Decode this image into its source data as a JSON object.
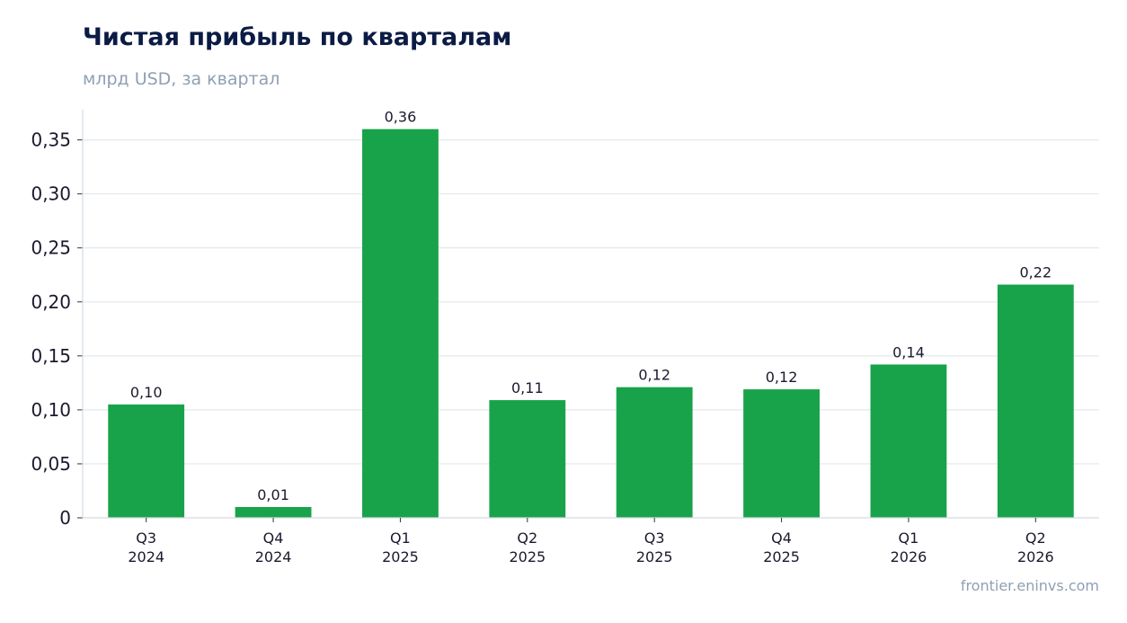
{
  "header": {
    "title": "Чистая прибыль по кварталам",
    "subtitle": "млрд USD, за квартал"
  },
  "footer": {
    "source": "frontier.eninvs.com"
  },
  "colors": {
    "bar": "#18a34a",
    "title": "#0b1b45",
    "muted": "#8fa0b3"
  },
  "chart_data": {
    "type": "bar",
    "title": "Чистая прибыль по кварталам",
    "subtitle": "млрд USD, за квартал",
    "categories": [
      [
        "Q3",
        "2024"
      ],
      [
        "Q4",
        "2024"
      ],
      [
        "Q1",
        "2025"
      ],
      [
        "Q2",
        "2025"
      ],
      [
        "Q3",
        "2025"
      ],
      [
        "Q4",
        "2025"
      ],
      [
        "Q1",
        "2026"
      ],
      [
        "Q2",
        "2026"
      ]
    ],
    "values": [
      0.105,
      0.01,
      0.36,
      0.109,
      0.121,
      0.119,
      0.142,
      0.216
    ],
    "data_labels": [
      "0,10",
      "0,01",
      "0,36",
      "0,11",
      "0,12",
      "0,12",
      "0,14",
      "0,22"
    ],
    "yticks": [
      0,
      0.05,
      0.1,
      0.15,
      0.2,
      0.25,
      0.3,
      0.35
    ],
    "ytick_labels": [
      "0",
      "0,05",
      "0,10",
      "0,15",
      "0,20",
      "0,25",
      "0,30",
      "0,35"
    ],
    "ylim": [
      0,
      0.378
    ],
    "grid": true,
    "legend": "none"
  }
}
